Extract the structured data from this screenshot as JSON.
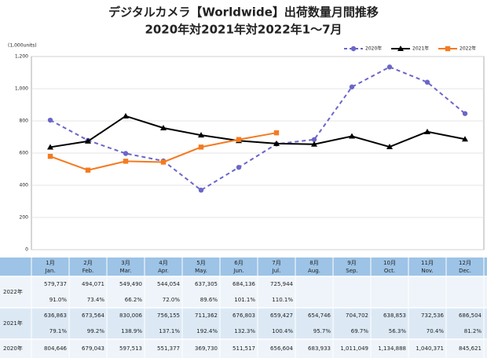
{
  "chart_data": {
    "type": "line",
    "title": "デジタルカメラ【Worldwide】出荷数量月間推移",
    "subtitle": "2020年対2021年対2022年1～7月",
    "y_unit_label": "(1,000units)",
    "categories": [
      "1月",
      "2月",
      "3月",
      "4月",
      "5月",
      "6月",
      "7月",
      "8月",
      "9月",
      "10月",
      "11月",
      "12月"
    ],
    "categories_en": [
      "Jan.",
      "Feb.",
      "Mar.",
      "Apr.",
      "May.",
      "Jun.",
      "Jul.",
      "Aug.",
      "Sep.",
      "Oct.",
      "Nov.",
      "Dec."
    ],
    "ylim": [
      0,
      1200
    ],
    "yticks": [
      0,
      200,
      400,
      600,
      800,
      {
        "value": 1000,
        "label": "1,000"
      },
      {
        "value": 1200,
        "label": "1,200"
      }
    ],
    "grid": true,
    "legend": "top-right",
    "series": [
      {
        "name": "2020年",
        "color": "#6b66c8",
        "dashed": true,
        "marker": "circle",
        "values": [
          804.646,
          679.043,
          597.513,
          551.377,
          369.73,
          511.517,
          656.604,
          683.933,
          1011.049,
          1134.888,
          1040.371,
          845.621
        ]
      },
      {
        "name": "2021年",
        "color": "#000000",
        "dashed": false,
        "marker": "triangle",
        "values": [
          636.863,
          673.564,
          830.006,
          756.155,
          711.362,
          676.803,
          659.427,
          654.746,
          704.702,
          638.853,
          732.536,
          686.504
        ]
      },
      {
        "name": "2022年",
        "color": "#f47a20",
        "dashed": false,
        "marker": "square",
        "values": [
          579.737,
          494.071,
          549.49,
          544.054,
          637.305,
          684.136,
          725.944,
          null,
          null,
          null,
          null,
          null
        ]
      }
    ]
  },
  "table": {
    "rows": [
      {
        "label": "2022年",
        "values": [
          "579,737",
          "494,071",
          "549,490",
          "544,054",
          "637,305",
          "684,136",
          "725,944"
        ],
        "ratios": [
          "91.0%",
          "73.4%",
          "66.2%",
          "72.0%",
          "89.6%",
          "101.1%",
          "110.1%"
        ]
      },
      {
        "label": "2021年",
        "values": [
          "636,863",
          "673,564",
          "830,006",
          "756,155",
          "711,362",
          "676,803",
          "659,427",
          "654,746",
          "704,702",
          "638,853",
          "732,536",
          "686,504"
        ],
        "ratios": [
          "79.1%",
          "99.2%",
          "138.9%",
          "137.1%",
          "192.4%",
          "132.3%",
          "100.4%",
          "95.7%",
          "69.7%",
          "56.3%",
          "70.4%",
          "81.2%"
        ]
      },
      {
        "label": "2020年",
        "values": [
          "804,646",
          "679,043",
          "597,513",
          "551,377",
          "369,730",
          "511,517",
          "656,604",
          "683,933",
          "1,011,049",
          "1,134,888",
          "1,040,371",
          "845,621"
        ]
      }
    ]
  }
}
